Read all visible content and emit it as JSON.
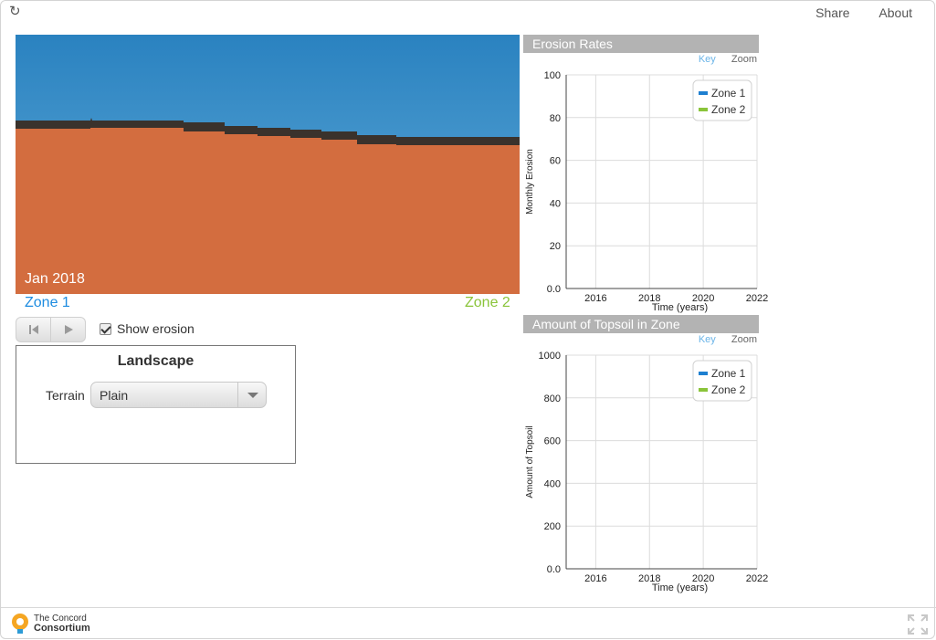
{
  "header": {
    "share_label": "Share",
    "about_label": "About"
  },
  "model": {
    "date": "Jan 2018",
    "zone1_label": "Zone 1",
    "zone2_label": "Zone 2",
    "colors": {
      "sky_top": "#2a82c0",
      "sky_bottom": "#63acd9",
      "soil": "#d36d3f",
      "topsoil": "#3a322c",
      "zone1": "#1e8ce0",
      "zone2": "#8ac43a"
    }
  },
  "controls": {
    "rewind_icon": "skip-back-icon",
    "play_icon": "play-icon",
    "show_erosion_label": "Show erosion",
    "show_erosion_checked": true
  },
  "landscape": {
    "title": "Landscape",
    "terrain_label": "Terrain",
    "terrain_value": "Plain"
  },
  "graphs": {
    "key_label": "Key",
    "zoom_label": "Zoom"
  },
  "chart_data": [
    {
      "type": "line",
      "title": "Erosion Rates",
      "xlabel": "Time (years)",
      "ylabel": "Monthly Erosion",
      "xlim": [
        2014.9,
        2022
      ],
      "ylim": [
        0,
        100
      ],
      "x_ticks": [
        2016,
        2018,
        2020,
        2022
      ],
      "y_ticks": [
        "0.0",
        "20",
        "40",
        "60",
        "80",
        "100"
      ],
      "legend_position": "top-right",
      "series": [
        {
          "name": "Zone 1",
          "color": "#1e7fd0",
          "values": []
        },
        {
          "name": "Zone 2",
          "color": "#8ac43a",
          "values": []
        }
      ]
    },
    {
      "type": "line",
      "title": "Amount of Topsoil in Zone",
      "xlabel": "Time (years)",
      "ylabel": "Amount of Topsoil",
      "xlim": [
        2014.9,
        2022
      ],
      "ylim": [
        0,
        1000
      ],
      "x_ticks": [
        2016,
        2018,
        2020,
        2022
      ],
      "y_ticks": [
        "0.0",
        "200",
        "400",
        "600",
        "800",
        "1000"
      ],
      "legend_position": "top-right",
      "series": [
        {
          "name": "Zone 1",
          "color": "#1e7fd0",
          "values": []
        },
        {
          "name": "Zone 2",
          "color": "#8ac43a",
          "values": []
        }
      ]
    }
  ],
  "footer": {
    "logo_line1": "The Concord",
    "logo_line2": "Consortium"
  }
}
